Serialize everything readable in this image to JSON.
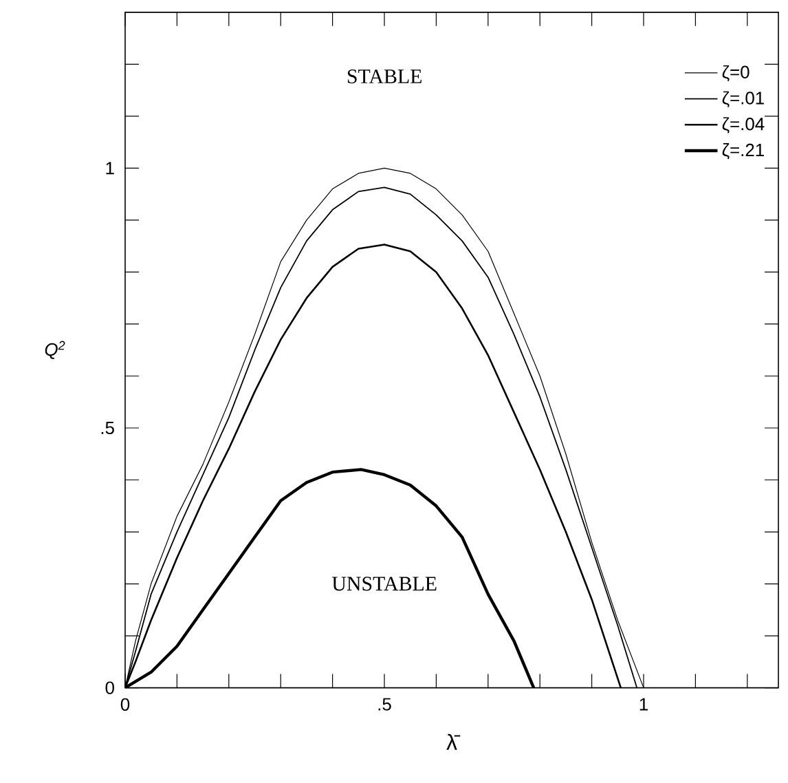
{
  "chart_data": {
    "type": "line",
    "xlabel": "λ̄",
    "ylabel": "Q$^{2}$",
    "xlim": [
      0,
      1.26
    ],
    "ylim": [
      0,
      1.3
    ],
    "xticks": [
      0,
      {
        "value": 0.1,
        "label": null
      },
      {
        "value": 0.2,
        "label": null
      },
      {
        "value": 0.3,
        "label": null
      },
      {
        "value": 0.4,
        "label": null
      },
      {
        "value": 0.5,
        "label": ".5"
      },
      {
        "value": 0.6,
        "label": null
      },
      {
        "value": 0.7,
        "label": null
      },
      {
        "value": 0.8,
        "label": null
      },
      {
        "value": 0.9,
        "label": null
      },
      1,
      {
        "value": 1.1,
        "label": null
      },
      {
        "value": 1.2,
        "label": null
      }
    ],
    "yticks": [
      0,
      {
        "value": 0.1,
        "label": null
      },
      {
        "value": 0.2,
        "label": null
      },
      {
        "value": 0.3,
        "label": null
      },
      {
        "value": 0.4,
        "label": null
      },
      {
        "value": 0.5,
        "label": ".5"
      },
      {
        "value": 0.6,
        "label": null
      },
      {
        "value": 0.7,
        "label": null
      },
      {
        "value": 0.8,
        "label": null
      },
      {
        "value": 0.9,
        "label": null
      },
      1,
      {
        "value": 1.1,
        "label": null
      },
      {
        "value": 1.2,
        "label": null
      }
    ],
    "legend": "top right",
    "grid": false,
    "marker": "none",
    "line_style": "solid",
    "annotations": [
      "STABLE",
      "UNSTABLE"
    ],
    "series": [
      {
        "name": "ζ=0",
        "color": "#000000",
        "x": [
          0,
          0.02,
          0.05,
          0.1,
          0.15,
          0.2,
          0.25,
          0.3,
          0.35,
          0.4,
          0.45,
          0.5,
          0.55,
          0.6,
          0.65,
          0.7,
          0.75,
          0.8,
          0.85,
          0.9,
          0.95,
          1.0
        ],
        "values": [
          0,
          0.09,
          0.2,
          0.33,
          0.43,
          0.55,
          0.68,
          0.82,
          0.9,
          0.96,
          0.99,
          1.0,
          0.99,
          0.96,
          0.91,
          0.84,
          0.72,
          0.6,
          0.45,
          0.28,
          0.13,
          0
        ]
      },
      {
        "name": "ζ=.01",
        "color": "#000000",
        "x": [
          0,
          0.02,
          0.05,
          0.1,
          0.15,
          0.2,
          0.25,
          0.3,
          0.35,
          0.4,
          0.45,
          0.5,
          0.55,
          0.6,
          0.65,
          0.7,
          0.75,
          0.8,
          0.85,
          0.9,
          0.95,
          0.987
        ],
        "values": [
          0,
          0.07,
          0.18,
          0.3,
          0.41,
          0.52,
          0.65,
          0.77,
          0.86,
          0.92,
          0.955,
          0.963,
          0.95,
          0.91,
          0.86,
          0.79,
          0.68,
          0.56,
          0.42,
          0.27,
          0.12,
          0
        ]
      },
      {
        "name": "ζ=.04",
        "color": "#000000",
        "x": [
          0,
          0.02,
          0.05,
          0.1,
          0.15,
          0.2,
          0.25,
          0.3,
          0.35,
          0.4,
          0.45,
          0.5,
          0.55,
          0.6,
          0.65,
          0.7,
          0.75,
          0.8,
          0.85,
          0.9,
          0.956
        ],
        "values": [
          0,
          0.05,
          0.13,
          0.25,
          0.36,
          0.46,
          0.57,
          0.67,
          0.75,
          0.81,
          0.845,
          0.853,
          0.84,
          0.8,
          0.73,
          0.64,
          0.53,
          0.42,
          0.3,
          0.17,
          0
        ]
      },
      {
        "name": "ζ=.21",
        "color": "#000000",
        "x": [
          0,
          0.05,
          0.1,
          0.15,
          0.2,
          0.25,
          0.3,
          0.35,
          0.4,
          0.455,
          0.5,
          0.55,
          0.6,
          0.65,
          0.7,
          0.75,
          0.788
        ],
        "values": [
          0,
          0.03,
          0.08,
          0.15,
          0.22,
          0.29,
          0.36,
          0.395,
          0.415,
          0.42,
          0.41,
          0.39,
          0.35,
          0.29,
          0.18,
          0.09,
          0
        ]
      }
    ]
  }
}
